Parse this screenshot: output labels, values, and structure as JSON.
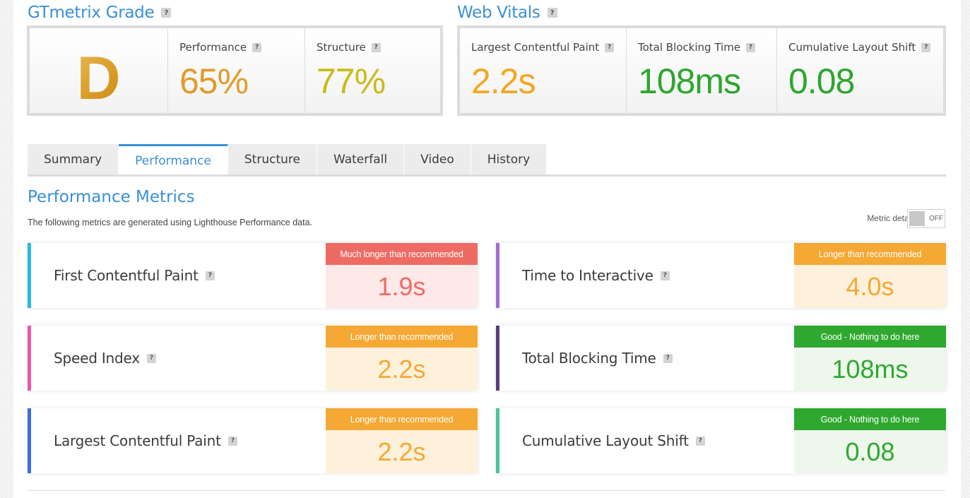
{
  "grade": {
    "title": "GTmetrix Grade",
    "letter": "D",
    "letter_color": "#d89a24",
    "performance": {
      "label": "Performance",
      "value": "65%",
      "color": "#e39b2a"
    },
    "structure": {
      "label": "Structure",
      "value": "77%",
      "color": "#c9bb1c"
    }
  },
  "web_vitals": {
    "title": "Web Vitals",
    "items": [
      {
        "label": "Largest Contentful Paint",
        "value": "2.2s",
        "color": "#f5a623"
      },
      {
        "label": "Total Blocking Time",
        "value": "108ms",
        "color": "#2ea62e"
      },
      {
        "label": "Cumulative Layout Shift",
        "value": "0.08",
        "color": "#2ea62e"
      }
    ]
  },
  "tabs": [
    {
      "label": "Summary",
      "active": false
    },
    {
      "label": "Performance",
      "active": true
    },
    {
      "label": "Structure",
      "active": false
    },
    {
      "label": "Waterfall",
      "active": false
    },
    {
      "label": "Video",
      "active": false
    },
    {
      "label": "History",
      "active": false
    }
  ],
  "performance_metrics": {
    "title": "Performance Metrics",
    "subtitle": "The following metrics are generated using Lighthouse Performance data.",
    "metric_details_label": "Metric details",
    "toggle_state": "OFF",
    "help_glyph": "?",
    "metrics": [
      {
        "name": "First Contentful Paint",
        "badge": "Much longer than recommended",
        "value": "1.9s",
        "status": "bad",
        "accent": "#29b6e8"
      },
      {
        "name": "Time to Interactive",
        "badge": "Longer than recommended",
        "value": "4.0s",
        "status": "warn",
        "accent": "#a36cd4"
      },
      {
        "name": "Speed Index",
        "badge": "Longer than recommended",
        "value": "2.2s",
        "status": "warn",
        "accent": "#e85aa8"
      },
      {
        "name": "Total Blocking Time",
        "badge": "Good - Nothing to do here",
        "value": "108ms",
        "status": "good",
        "accent": "#5b3d7a"
      },
      {
        "name": "Largest Contentful Paint",
        "badge": "Longer than recommended",
        "value": "2.2s",
        "status": "warn",
        "accent": "#3a6fd6"
      },
      {
        "name": "Cumulative Layout Shift",
        "badge": "Good - Nothing to do here",
        "value": "0.08",
        "status": "good",
        "accent": "#4cc3a0"
      }
    ]
  },
  "status_colors": {
    "bad": {
      "badge": "#ee6b64",
      "value_bg": "#fde9e8",
      "value_color": "#ee6b64"
    },
    "warn": {
      "badge": "#f5a833",
      "value_bg": "#fdf1dc",
      "value_color": "#f5a833"
    },
    "good": {
      "badge": "#2fa82f",
      "value_bg": "#edf7ec",
      "value_color": "#2fa82f"
    }
  }
}
